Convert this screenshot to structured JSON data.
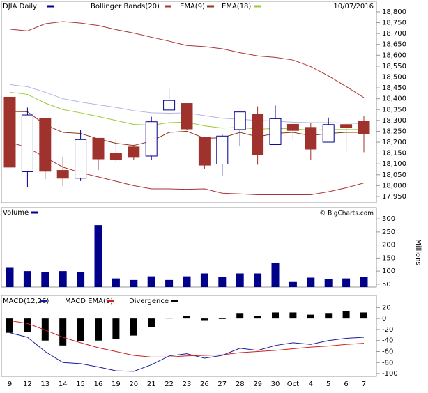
{
  "chart_data": [
    {
      "type": "candlestick",
      "name": "DJIA Daily",
      "color": "#00008b",
      "down_color": "#a0322d",
      "date": "10/07/2016",
      "open": [
        18407,
        18064,
        18310,
        18070,
        18034,
        18218,
        18150,
        18178,
        18136,
        18348,
        18378,
        18222,
        18099,
        18258,
        18327,
        18189,
        18282,
        18268,
        18200,
        18281,
        18296
      ],
      "high": [
        18407,
        18359,
        18310,
        18130,
        18256,
        18218,
        18214,
        18188,
        18317,
        18450,
        18378,
        18222,
        18238,
        18344,
        18365,
        18369,
        18282,
        18289,
        18313,
        18286,
        18320
      ],
      "low": [
        18085,
        17992,
        18030,
        17998,
        18021,
        18071,
        18106,
        18117,
        18119,
        18348,
        18257,
        18077,
        18045,
        18181,
        18096,
        18189,
        18211,
        18118,
        18200,
        18158,
        18154
      ],
      "close": [
        18085,
        18325,
        18066,
        18034,
        18212,
        18123,
        18120,
        18130,
        18294,
        18392,
        18261,
        18094,
        18228,
        18339,
        18143,
        18308,
        18254,
        18168,
        18281,
        18268,
        18240
      ],
      "overlays": [
        {
          "name": "Bollinger Bands(20)",
          "color": "#aa3333",
          "middle_color": "#b4b4e6",
          "upper": [
            18720,
            18712,
            18745,
            18755,
            18748,
            18737,
            18718,
            18702,
            18683,
            18665,
            18645,
            18640,
            18630,
            18612,
            18597,
            18590,
            18578,
            18548,
            18505,
            18456,
            18405
          ],
          "middle": [
            18465,
            18455,
            18430,
            18400,
            18385,
            18372,
            18360,
            18345,
            18335,
            18333,
            18335,
            18322,
            18310,
            18305,
            18300,
            18297,
            18292,
            18290,
            18290,
            18288,
            18285
          ],
          "lower": [
            18200,
            18175,
            18130,
            18085,
            18060,
            18040,
            18020,
            18000,
            17985,
            17985,
            17983,
            17985,
            17965,
            17962,
            17958,
            17958,
            17958,
            17958,
            17972,
            17990,
            18012
          ]
        },
        {
          "name": "EMA(9)",
          "color": "#8b3a1a",
          "values": [
            18341,
            18340,
            18280,
            18245,
            18240,
            18215,
            18195,
            18185,
            18205,
            18245,
            18250,
            18218,
            18220,
            18245,
            18225,
            18240,
            18245,
            18230,
            18240,
            18245,
            18245
          ]
        },
        {
          "name": "EMA(18)",
          "color": "#99cc33",
          "values": [
            18430,
            18420,
            18380,
            18350,
            18335,
            18318,
            18300,
            18282,
            18278,
            18290,
            18292,
            18275,
            18265,
            18268,
            18260,
            18263,
            18262,
            18255,
            18258,
            18258,
            18258
          ]
        }
      ],
      "ylim": [
        17921,
        18848
      ],
      "yticks": [
        {
          "value": 18800,
          "label": "18,800"
        },
        {
          "value": 18750,
          "label": "18,750"
        },
        {
          "value": 18700,
          "label": "18,700"
        },
        {
          "value": 18650,
          "label": "18,650"
        },
        {
          "value": 18600,
          "label": "18,600"
        },
        {
          "value": 18550,
          "label": "18,550"
        },
        {
          "value": 18500,
          "label": "18,500"
        },
        {
          "value": 18450,
          "label": "18,450"
        },
        {
          "value": 18400,
          "label": "18,400"
        },
        {
          "value": 18350,
          "label": "18,350"
        },
        {
          "value": 18300,
          "label": "18,300"
        },
        {
          "value": 18250,
          "label": "18,250"
        },
        {
          "value": 18200,
          "label": "18,200"
        },
        {
          "value": 18150,
          "label": "18,150"
        },
        {
          "value": 18100,
          "label": "18,100"
        },
        {
          "value": 18050,
          "label": "18,050"
        },
        {
          "value": 18000,
          "label": "18,000"
        },
        {
          "value": 17950,
          "label": "17,950"
        }
      ]
    },
    {
      "type": "bar",
      "name": "Volume",
      "color": "#00008b",
      "ylabel": "Millions",
      "watermark": "© BigCharts.com",
      "values": [
        115,
        100,
        96,
        100,
        95,
        276,
        72,
        66,
        80,
        66,
        80,
        91,
        78,
        91,
        91,
        132,
        61,
        75,
        69,
        72,
        78
      ],
      "ylim": [
        39,
        343
      ],
      "yticks": [
        50,
        100,
        150,
        200,
        250,
        300
      ]
    },
    {
      "type": "macd",
      "categories": [
        "9",
        "12",
        "13",
        "14",
        "15",
        "16",
        "19",
        "20",
        "21",
        "22",
        "23",
        "26",
        "27",
        "28",
        "29",
        "30",
        "Oct",
        "4",
        "5",
        "6",
        "7"
      ],
      "series": [
        {
          "name": "MACD(12,26)",
          "color": "#1a1a9c",
          "values": [
            -26,
            -34,
            -60,
            -80,
            -82,
            -88,
            -95,
            -96,
            -84,
            -68,
            -64,
            -72,
            -67,
            -54,
            -58,
            -49,
            -44,
            -47,
            -40,
            -36,
            -34
          ]
        },
        {
          "name": "MACD EMA(9)",
          "color": "#cc2222",
          "values": [
            -4,
            -9,
            -21,
            -34,
            -44,
            -53,
            -60,
            -67,
            -70,
            -70,
            -68,
            -67,
            -66,
            -62,
            -60,
            -58,
            -55,
            -52,
            -50,
            -47,
            -45
          ]
        },
        {
          "name": "Divergence",
          "color": "#000000",
          "values": [
            -26,
            -25,
            -40,
            -49,
            -41,
            -40,
            -37,
            -31,
            -16,
            1,
            5,
            -3,
            -1,
            10,
            4,
            11,
            11,
            7,
            10,
            14,
            11
          ]
        }
      ],
      "ylim": [
        -105,
        42
      ],
      "yticks": [
        20,
        0,
        -20,
        -40,
        -60,
        -80,
        -100
      ]
    }
  ]
}
